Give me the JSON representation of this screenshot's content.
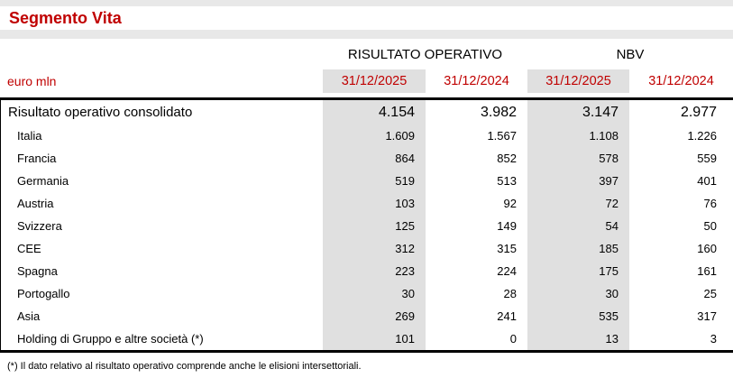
{
  "title": "Segmento Vita",
  "unit_label": "euro mln",
  "colors": {
    "accent_red": "#c00000",
    "band_gray": "#e8e8e8",
    "column_gray": "#e0e0e0"
  },
  "table": {
    "group_headers": [
      "RISULTATO OPERATIVO",
      "NBV"
    ],
    "column_headers": [
      "31/12/2025",
      "31/12/2024",
      "31/12/2025",
      "31/12/2024"
    ],
    "rows": [
      {
        "label": "Risultato operativo consolidato",
        "values": [
          "4.154",
          "3.982",
          "3.147",
          "2.977"
        ],
        "total": true
      },
      {
        "label": "Italia",
        "values": [
          "1.609",
          "1.567",
          "1.108",
          "1.226"
        ]
      },
      {
        "label": "Francia",
        "values": [
          "864",
          "852",
          "578",
          "559"
        ]
      },
      {
        "label": "Germania",
        "values": [
          "519",
          "513",
          "397",
          "401"
        ]
      },
      {
        "label": "Austria",
        "values": [
          "103",
          "92",
          "72",
          "76"
        ]
      },
      {
        "label": "Svizzera",
        "values": [
          "125",
          "149",
          "54",
          "50"
        ]
      },
      {
        "label": "CEE",
        "values": [
          "312",
          "315",
          "185",
          "160"
        ]
      },
      {
        "label": "Spagna",
        "values": [
          "223",
          "224",
          "175",
          "161"
        ]
      },
      {
        "label": "Portogallo",
        "values": [
          "30",
          "28",
          "30",
          "25"
        ]
      },
      {
        "label": "Asia",
        "values": [
          "269",
          "241",
          "535",
          "317"
        ]
      },
      {
        "label": "Holding di Gruppo e altre società (*)",
        "values": [
          "101",
          "0",
          "13",
          "3"
        ]
      }
    ]
  },
  "footnote": "(*) Il dato relativo al risultato operativo comprende anche le elisioni intersettoriali."
}
